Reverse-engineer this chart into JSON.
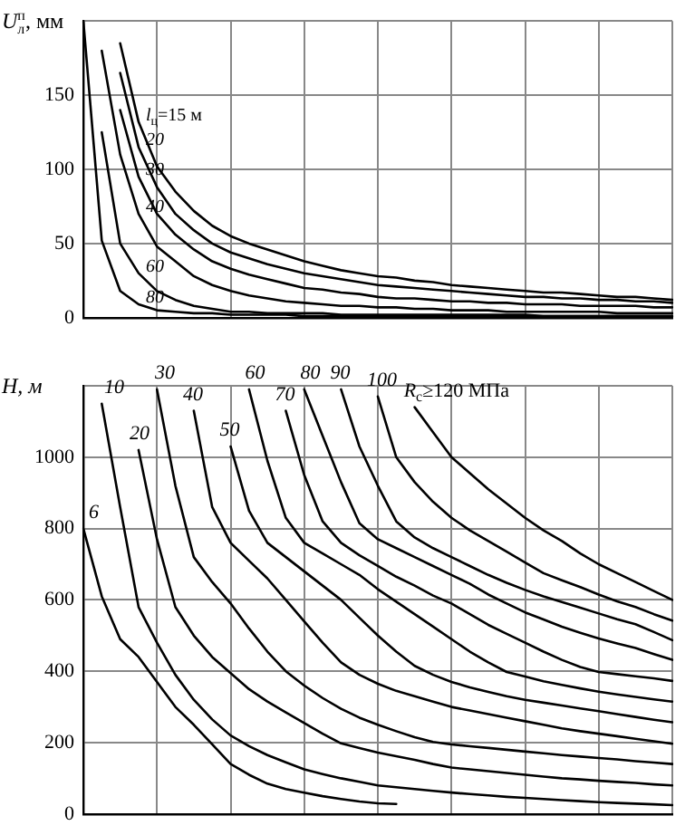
{
  "chart_data": [
    {
      "type": "line",
      "ylabel": "U$_{л}$$^{п}$, мм",
      "categories": [
        null,
        null,
        null,
        null,
        null,
        null,
        null,
        null,
        null,
        null,
        null,
        null,
        null,
        null,
        null,
        null,
        null,
        null,
        null,
        null,
        null,
        null,
        null,
        null,
        null,
        null,
        null,
        null,
        null,
        null,
        null,
        null,
        null
      ],
      "ylim": [
        0,
        200
      ],
      "yticks": [
        0,
        50,
        100,
        150,
        {
          "value": 200,
          "label": null
        }
      ],
      "grid": true,
      "tick_labels": "y",
      "marker": "none",
      "line_style": "solid",
      "series": [
        {
          "name": "80",
          "color": "#000000",
          "values": [
            200,
            52,
            18,
            9,
            5,
            4,
            3,
            3,
            2,
            2,
            2,
            2,
            1,
            1,
            1,
            1,
            1,
            1,
            1,
            1,
            1,
            1,
            1,
            1,
            1,
            1,
            1,
            1,
            1,
            1,
            1,
            1,
            1
          ]
        },
        {
          "name": "60",
          "color": "#000000",
          "values": [
            null,
            125,
            50,
            30,
            18,
            12,
            8,
            6,
            4,
            4,
            3,
            3,
            3,
            3,
            2,
            2,
            2,
            2,
            2,
            2,
            2,
            2,
            2,
            2,
            2,
            1,
            1,
            1,
            1,
            1,
            1,
            1,
            1
          ]
        },
        {
          "name": "40",
          "color": "#000000",
          "values": [
            null,
            180,
            110,
            70,
            48,
            38,
            28,
            22,
            18,
            15,
            13,
            11,
            10,
            9,
            8,
            8,
            7,
            7,
            6,
            6,
            5,
            5,
            5,
            4,
            4,
            4,
            4,
            4,
            4,
            3,
            3,
            3,
            3
          ]
        },
        {
          "name": "30",
          "color": "#000000",
          "values": [
            null,
            null,
            140,
            95,
            70,
            56,
            46,
            38,
            33,
            29,
            26,
            23,
            20,
            19,
            17,
            16,
            14,
            13,
            13,
            12,
            11,
            11,
            10,
            10,
            9,
            9,
            9,
            8,
            8,
            8,
            8,
            7,
            7
          ]
        },
        {
          "name": "20",
          "color": "#000000",
          "values": [
            null,
            null,
            165,
            115,
            88,
            70,
            59,
            50,
            44,
            40,
            36,
            33,
            30,
            28,
            26,
            24,
            22,
            21,
            20,
            19,
            18,
            17,
            16,
            15,
            14,
            14,
            13,
            13,
            12,
            12,
            11,
            11,
            10
          ]
        },
        {
          "name": "l$_{ц}$=15 м",
          "color": "#000000",
          "values": [
            null,
            null,
            185,
            132,
            102,
            85,
            72,
            62,
            55,
            50,
            46,
            42,
            38,
            35,
            32,
            30,
            28,
            27,
            25,
            24,
            22,
            21,
            20,
            19,
            18,
            17,
            17,
            16,
            15,
            14,
            14,
            13,
            12
          ]
        }
      ]
    },
    {
      "type": "line",
      "ylabel": "H, м",
      "categories": [
        null,
        null,
        null,
        null,
        null,
        null,
        null,
        null,
        null,
        null,
        null,
        null,
        null,
        null,
        null,
        null,
        null,
        null,
        null,
        null,
        null,
        null,
        null,
        null,
        null,
        null,
        null,
        null,
        null,
        null,
        null,
        null,
        null
      ],
      "ylim": [
        0,
        1200
      ],
      "yticks": [
        0,
        200,
        400,
        600,
        800,
        1000,
        {
          "value": 1200,
          "label": null
        }
      ],
      "grid": true,
      "tick_labels": "y",
      "marker": "none",
      "line_style": "solid",
      "series": [
        {
          "name": "6",
          "color": "#000000",
          "values": [
            800,
            610,
            490,
            440,
            370,
            300,
            250,
            195,
            140,
            110,
            85,
            70,
            60,
            50,
            42,
            35,
            30,
            28,
            null,
            null,
            null,
            null,
            null,
            null,
            null,
            null,
            null,
            null,
            null,
            null,
            null,
            null,
            null
          ]
        },
        {
          "name": "10",
          "color": "#000000",
          "values": [
            null,
            1150,
            860,
            580,
            480,
            390,
            320,
            265,
            220,
            190,
            165,
            145,
            125,
            112,
            100,
            90,
            80,
            75,
            70,
            65,
            60,
            56,
            52,
            48,
            45,
            42,
            39,
            36,
            33,
            31,
            29,
            27,
            25
          ]
        },
        {
          "name": "20",
          "color": "#000000",
          "values": [
            null,
            null,
            null,
            1020,
            770,
            580,
            500,
            440,
            395,
            350,
            315,
            285,
            255,
            225,
            198,
            185,
            172,
            162,
            152,
            140,
            130,
            125,
            120,
            115,
            110,
            105,
            100,
            97,
            93,
            90,
            87,
            83,
            80
          ]
        },
        {
          "name": "30",
          "color": "#000000",
          "values": [
            null,
            null,
            null,
            null,
            1190,
            920,
            720,
            650,
            590,
            520,
            455,
            400,
            360,
            325,
            295,
            270,
            250,
            232,
            215,
            202,
            195,
            190,
            185,
            180,
            175,
            170,
            165,
            161,
            157,
            153,
            148,
            144,
            140
          ]
        },
        {
          "name": "40",
          "color": "#000000",
          "values": [
            null,
            null,
            null,
            null,
            null,
            null,
            1130,
            860,
            760,
            710,
            660,
            600,
            540,
            480,
            425,
            390,
            365,
            345,
            330,
            315,
            300,
            290,
            280,
            270,
            260,
            250,
            240,
            232,
            225,
            218,
            211,
            204,
            197
          ]
        },
        {
          "name": "50",
          "color": "#000000",
          "values": [
            null,
            null,
            null,
            null,
            null,
            null,
            null,
            null,
            1030,
            850,
            760,
            720,
            680,
            640,
            600,
            550,
            500,
            455,
            415,
            390,
            370,
            355,
            342,
            330,
            320,
            312,
            304,
            296,
            288,
            280,
            272,
            264,
            257
          ]
        },
        {
          "name": "60",
          "color": "#000000",
          "values": [
            null,
            null,
            null,
            null,
            null,
            null,
            null,
            null,
            null,
            1190,
            990,
            830,
            760,
            730,
            700,
            670,
            630,
            595,
            560,
            525,
            490,
            455,
            425,
            398,
            385,
            372,
            362,
            352,
            343,
            335,
            328,
            321,
            315
          ]
        },
        {
          "name": "70",
          "color": "#000000",
          "values": [
            null,
            null,
            null,
            null,
            null,
            null,
            null,
            null,
            null,
            null,
            null,
            1130,
            950,
            820,
            760,
            725,
            695,
            665,
            640,
            612,
            590,
            560,
            530,
            505,
            480,
            455,
            432,
            412,
            398,
            392,
            386,
            380,
            373
          ]
        },
        {
          "name": "80",
          "color": "#000000",
          "values": [
            null,
            null,
            null,
            null,
            null,
            null,
            null,
            null,
            null,
            null,
            null,
            null,
            1190,
            1060,
            930,
            815,
            770,
            745,
            720,
            695,
            670,
            645,
            615,
            590,
            565,
            545,
            525,
            508,
            492,
            478,
            465,
            448,
            432
          ]
        },
        {
          "name": "90",
          "color": "#000000",
          "values": [
            null,
            null,
            null,
            null,
            null,
            null,
            null,
            null,
            null,
            null,
            null,
            null,
            null,
            null,
            1190,
            1030,
            920,
            820,
            775,
            745,
            720,
            695,
            670,
            648,
            628,
            610,
            594,
            578,
            562,
            546,
            532,
            510,
            487
          ]
        },
        {
          "name": "100",
          "color": "#000000",
          "values": [
            null,
            null,
            null,
            null,
            null,
            null,
            null,
            null,
            null,
            null,
            null,
            null,
            null,
            null,
            null,
            null,
            1170,
            1000,
            930,
            875,
            830,
            795,
            765,
            735,
            705,
            675,
            655,
            636,
            615,
            596,
            580,
            560,
            542
          ]
        },
        {
          "name": "R$_{c}$≥120 МПа",
          "color": "#000000",
          "values": [
            null,
            null,
            null,
            null,
            null,
            null,
            null,
            null,
            null,
            null,
            null,
            null,
            null,
            null,
            null,
            null,
            null,
            null,
            1140,
            1070,
            1000,
            955,
            910,
            870,
            830,
            795,
            765,
            730,
            700,
            675,
            650,
            625,
            600
          ]
        }
      ]
    }
  ]
}
